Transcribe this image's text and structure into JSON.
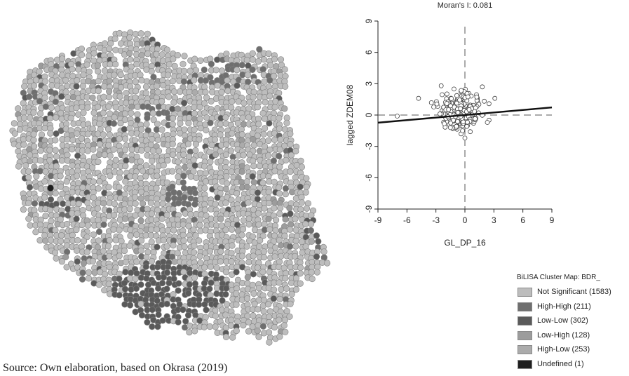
{
  "chart_data": [
    {
      "type": "map",
      "description_text": "",
      "legend": {
        "title": "BiLISA Cluster Map: BDR_",
        "items": [
          {
            "label": "Not Significant (1583)",
            "color": "#bdbdbd",
            "count": 1583
          },
          {
            "label": "High-High (211)",
            "color": "#6f6f6f",
            "count": 211
          },
          {
            "label": "Low-Low (302)",
            "color": "#5a5a5a",
            "count": 302
          },
          {
            "label": "Low-High (128)",
            "color": "#9c9c9c",
            "count": 128
          },
          {
            "label": "High-Low (253)",
            "color": "#ababab",
            "count": 253
          },
          {
            "label": "Undefined (1)",
            "color": "#1e1e1e",
            "count": 1
          }
        ]
      }
    },
    {
      "type": "scatter",
      "title": "Moran's I: 0.081",
      "xlabel": "GL_DP_16",
      "ylabel": "lagged ZDEM08",
      "xlim": [
        -9,
        9
      ],
      "ylim": [
        -9,
        9
      ],
      "xticks": [
        "-9",
        "-6",
        "-3",
        "0",
        "3",
        "6",
        "9"
      ],
      "yticks": [
        "-9",
        "-6",
        "-3",
        "0",
        "3",
        "6",
        "9"
      ],
      "slope": 0.081,
      "regression_line": {
        "x": [
          -9,
          9
        ],
        "y": [
          -0.73,
          0.73
        ]
      },
      "outliers": [
        [
          -7,
          -0.1
        ],
        [
          -4.8,
          1.6
        ],
        [
          3.1,
          1.6
        ],
        [
          0.0,
          -2.2
        ],
        [
          -1.5,
          -1.2
        ],
        [
          1.8,
          2.7
        ]
      ],
      "cluster": {
        "x_range": [
          -4,
          2.5
        ],
        "y_range": [
          -1.8,
          2.8
        ],
        "n_points": 260
      }
    }
  ],
  "source_note": "Source: Own elaboration, based on Okrasa (2019)"
}
